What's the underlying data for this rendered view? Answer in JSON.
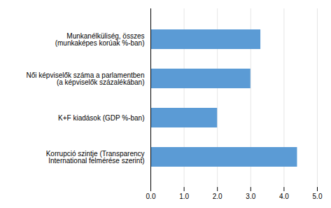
{
  "chart_data": {
    "type": "bar",
    "orientation": "horizontal",
    "categories": [
      "Korrupció szintje (Transparency\nInternational felmérése szerint)",
      "K+F kiadások (GDP %-ban)",
      "Női képviselők száma a parlamentben\n(a képviselők százalékában)",
      "Munkanélküliség, összes\n(munkaképes korúak %-ban)"
    ],
    "values": [
      4.4,
      2.0,
      3.0,
      3.3
    ],
    "color": "#5b9bd5",
    "xlim": [
      0,
      5
    ],
    "xticks": [
      0,
      1,
      2,
      3,
      4,
      5
    ],
    "grid": true
  }
}
